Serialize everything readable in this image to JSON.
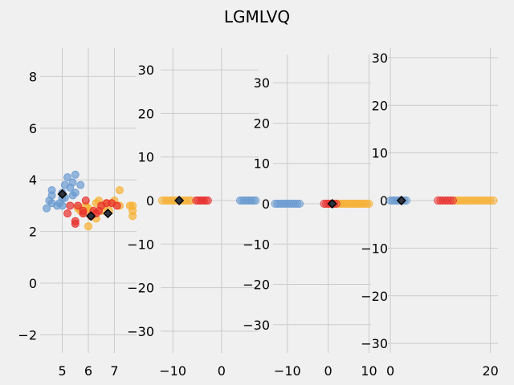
{
  "chart_data": {
    "type": "scatter",
    "title": "LGMLVQ",
    "colors": {
      "setosa": "#6b9bd1",
      "versicolor": "#f7b033",
      "virginica": "#e8302e",
      "prototype_fill": "#2d3440",
      "prototype_edge": "#000000"
    },
    "panels": [
      {
        "id": "panel-1",
        "xlim": [
          4.15,
          7.85
        ],
        "ylim": [
          -2.7,
          9.1
        ],
        "xticks": [
          5,
          6,
          7
        ],
        "xtick_labels": [
          "5",
          "6",
          "7"
        ],
        "yticks": [
          -2,
          0,
          2,
          4,
          6,
          8
        ],
        "ytick_labels": [
          "−2",
          "0",
          "2",
          "4",
          "6",
          "8"
        ],
        "points": {
          "setosa": [
            [
              4.4,
              2.9
            ],
            [
              4.5,
              3.2
            ],
            [
              4.6,
              3.1
            ],
            [
              4.6,
              3.4
            ],
            [
              4.6,
              3.6
            ],
            [
              4.8,
              3.0
            ],
            [
              4.9,
              3.1
            ],
            [
              5.0,
              3.0
            ],
            [
              5.0,
              3.3
            ],
            [
              5.0,
              3.5
            ],
            [
              5.1,
              3.3
            ],
            [
              5.1,
              3.8
            ],
            [
              5.2,
              4.1
            ],
            [
              5.3,
              3.7
            ],
            [
              5.4,
              3.4
            ],
            [
              5.4,
              3.9
            ],
            [
              5.5,
              3.5
            ],
            [
              5.5,
              4.2
            ],
            [
              5.7,
              3.8
            ]
          ],
          "versicolor": [
            [
              5.6,
              2.9
            ],
            [
              5.7,
              2.8
            ],
            [
              5.8,
              2.7
            ],
            [
              5.9,
              3.0
            ],
            [
              6.0,
              2.2
            ],
            [
              6.0,
              2.9
            ],
            [
              6.1,
              2.8
            ],
            [
              6.3,
              3.1
            ],
            [
              6.3,
              2.5
            ],
            [
              6.4,
              3.2
            ],
            [
              6.5,
              2.8
            ],
            [
              6.6,
              3.0
            ],
            [
              6.7,
              3.1
            ],
            [
              6.8,
              2.8
            ],
            [
              6.9,
              3.1
            ],
            [
              7.0,
              3.2
            ],
            [
              7.2,
              3.6
            ],
            [
              7.2,
              3.0
            ],
            [
              7.6,
              3.0
            ],
            [
              7.7,
              3.0
            ],
            [
              7.7,
              2.8
            ],
            [
              7.7,
              2.6
            ]
          ],
          "virginica": [
            [
              5.2,
              2.7
            ],
            [
              5.3,
              3.0
            ],
            [
              5.5,
              2.3
            ],
            [
              5.5,
              2.4
            ],
            [
              5.6,
              3.0
            ],
            [
              5.8,
              2.7
            ],
            [
              5.8,
              2.8
            ],
            [
              5.9,
              3.2
            ],
            [
              6.1,
              2.6
            ],
            [
              6.2,
              2.8
            ],
            [
              6.3,
              2.7
            ],
            [
              6.4,
              2.8
            ],
            [
              6.5,
              3.0
            ],
            [
              6.7,
              3.1
            ],
            [
              6.9,
              3.1
            ],
            [
              7.1,
              3.0
            ]
          ]
        },
        "prototypes": [
          [
            5.0,
            3.45
          ],
          [
            6.1,
            2.6
          ],
          [
            6.75,
            2.7
          ]
        ]
      },
      {
        "id": "panel-2",
        "xlim": [
          -12.5,
          7.6
        ],
        "ylim": [
          -35,
          35
        ],
        "xticks": [
          -10,
          0
        ],
        "xtick_labels": [
          "−10",
          "0"
        ],
        "yticks": [
          -30,
          -20,
          -10,
          0,
          10,
          20,
          30
        ],
        "ytick_labels": [
          "−30",
          "−20",
          "−10",
          "0",
          "10",
          "20",
          "30"
        ],
        "points": {
          "setosa": [
            [
              3.8,
              0
            ],
            [
              4.2,
              0
            ],
            [
              4.6,
              0
            ],
            [
              5.0,
              0
            ],
            [
              5.4,
              0
            ],
            [
              5.8,
              0
            ],
            [
              6.2,
              0
            ],
            [
              6.6,
              0
            ],
            [
              7.0,
              0
            ]
          ],
          "versicolor": [
            [
              -12.2,
              0
            ],
            [
              -11.7,
              0
            ],
            [
              -11.2,
              0
            ],
            [
              -10.7,
              0
            ],
            [
              -10.2,
              0
            ],
            [
              -9.7,
              0
            ],
            [
              -9.2,
              0
            ],
            [
              -8.7,
              0
            ],
            [
              -8.2,
              0
            ],
            [
              -7.7,
              0
            ],
            [
              -7.2,
              0
            ],
            [
              -6.7,
              0
            ],
            [
              -6.2,
              0
            ]
          ],
          "virginica": [
            [
              -5.2,
              0
            ],
            [
              -4.8,
              0
            ],
            [
              -4.4,
              0
            ],
            [
              -4.0,
              0
            ],
            [
              -3.6,
              0
            ],
            [
              -3.2,
              0
            ],
            [
              -2.8,
              0
            ]
          ]
        },
        "prototypes": [
          [
            -8.7,
            0
          ]
        ]
      },
      {
        "id": "panel-3",
        "xlim": [
          -13.5,
          10.5
        ],
        "ylim": [
          -37,
          37
        ],
        "xticks": [
          -10,
          0,
          10
        ],
        "xtick_labels": [
          "−10",
          "0",
          "10"
        ],
        "yticks": [
          -30,
          -20,
          -10,
          0,
          10,
          20,
          30
        ],
        "ytick_labels": [
          "−30",
          "−20",
          "−10",
          "0",
          "10",
          "20",
          "30"
        ],
        "points": {
          "setosa": [
            [
              -13.0,
              0
            ],
            [
              -12.5,
              0
            ],
            [
              -12.0,
              0
            ],
            [
              -11.5,
              0
            ],
            [
              -11.0,
              0
            ],
            [
              -10.5,
              0
            ],
            [
              -10.0,
              0
            ],
            [
              -9.5,
              0
            ],
            [
              -9.0,
              0
            ],
            [
              -8.5,
              0
            ],
            [
              -8.0,
              0
            ],
            [
              -7.5,
              0
            ],
            [
              -7.0,
              0
            ]
          ],
          "versicolor": [
            [
              2.5,
              0
            ],
            [
              3.0,
              0
            ],
            [
              3.5,
              0
            ],
            [
              4.0,
              0
            ],
            [
              4.5,
              0
            ],
            [
              5.0,
              0
            ],
            [
              5.5,
              0
            ],
            [
              6.0,
              0
            ],
            [
              6.5,
              0
            ],
            [
              7.0,
              0
            ],
            [
              7.5,
              0
            ],
            [
              8.0,
              0
            ],
            [
              8.5,
              0
            ],
            [
              9.0,
              0
            ],
            [
              9.5,
              0
            ],
            [
              10.0,
              0
            ]
          ],
          "virginica": [
            [
              -1.0,
              0
            ],
            [
              -0.5,
              0
            ],
            [
              0.0,
              0
            ],
            [
              0.5,
              0
            ],
            [
              1.0,
              0
            ],
            [
              1.5,
              0
            ],
            [
              2.0,
              0
            ]
          ]
        },
        "prototypes": [
          [
            1.0,
            0
          ]
        ]
      },
      {
        "id": "panel-4",
        "xlim": [
          -0.5,
          21.5
        ],
        "ylim": [
          -32,
          32
        ],
        "xticks": [
          0,
          20
        ],
        "xtick_labels": [
          "0",
          "20"
        ],
        "yticks": [
          -30,
          -20,
          -10,
          0,
          10,
          20,
          30
        ],
        "ytick_labels": [
          "−30",
          "−20",
          "−10",
          "0",
          "10",
          "20",
          "30"
        ],
        "points": {
          "setosa": [
            [
              0.0,
              0
            ],
            [
              0.4,
              0
            ],
            [
              0.8,
              0
            ],
            [
              1.2,
              0
            ],
            [
              1.6,
              0
            ],
            [
              2.0,
              0
            ],
            [
              2.4,
              0
            ],
            [
              2.8,
              0
            ],
            [
              3.2,
              0
            ]
          ],
          "versicolor": [
            [
              13.0,
              0
            ],
            [
              13.5,
              0
            ],
            [
              14.0,
              0
            ],
            [
              14.5,
              0
            ],
            [
              15.0,
              0
            ],
            [
              15.5,
              0
            ],
            [
              16.0,
              0
            ],
            [
              16.5,
              0
            ],
            [
              17.0,
              0
            ],
            [
              17.5,
              0
            ],
            [
              18.0,
              0
            ],
            [
              18.5,
              0
            ],
            [
              19.0,
              0
            ],
            [
              19.5,
              0
            ],
            [
              20.0,
              0
            ],
            [
              20.6,
              0
            ]
          ],
          "virginica": [
            [
              9.5,
              0
            ],
            [
              10.0,
              0
            ],
            [
              10.5,
              0
            ],
            [
              11.0,
              0
            ],
            [
              11.5,
              0
            ],
            [
              12.0,
              0
            ],
            [
              12.5,
              0
            ]
          ]
        },
        "prototypes": [
          [
            2.2,
            0
          ]
        ]
      }
    ]
  }
}
